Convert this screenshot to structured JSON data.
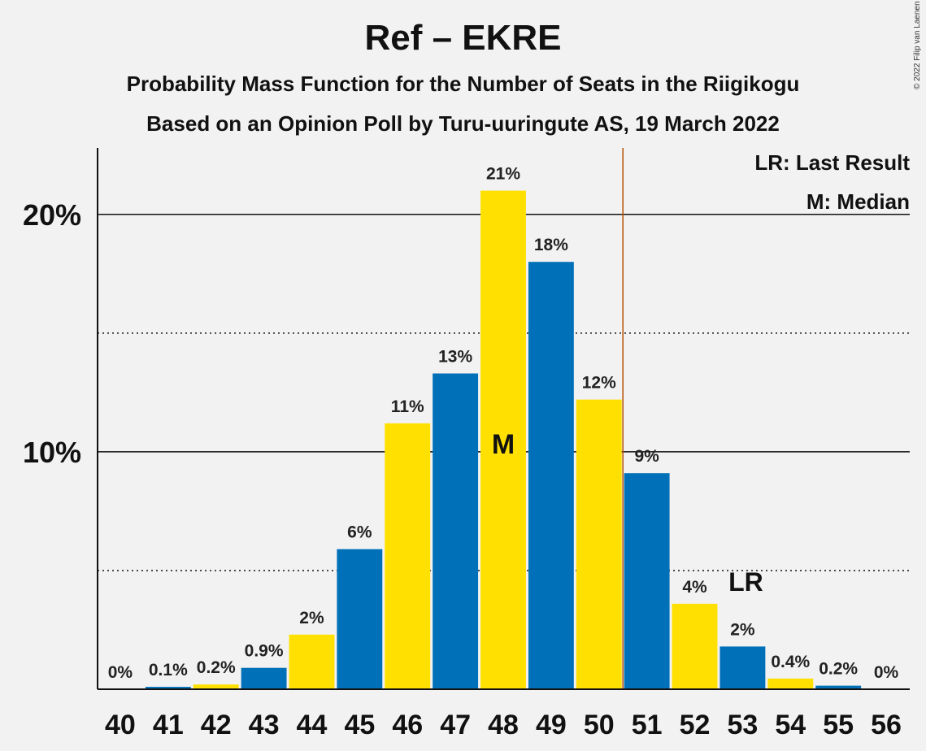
{
  "header": {
    "title": "Ref – EKRE",
    "subtitle1": "Probability Mass Function for the Number of Seats in the Riigikogu",
    "subtitle2": "Based on an Opinion Poll by Turu-uuringute AS, 19 March 2022",
    "copyright": "© 2022 Filip van Laenen"
  },
  "chart_data": {
    "type": "bar",
    "title": "Ref – EKRE",
    "categories": [
      40,
      41,
      42,
      43,
      44,
      45,
      46,
      47,
      48,
      49,
      50,
      51,
      52,
      53,
      54,
      55,
      56
    ],
    "values": [
      0,
      0.1,
      0.2,
      0.9,
      2.3,
      5.9,
      11.2,
      13.3,
      21.0,
      18.0,
      12.2,
      9.1,
      3.6,
      1.8,
      0.45,
      0.15,
      0
    ],
    "labels": [
      "0%",
      "0.1%",
      "0.2%",
      "0.9%",
      "2%",
      "6%",
      "11%",
      "13%",
      "21%",
      "18%",
      "12%",
      "9%",
      "4%",
      "2%",
      "0.4%",
      "0.2%",
      "0%"
    ],
    "yticks": [
      {
        "value": 10,
        "label": "10%"
      },
      {
        "value": 20,
        "label": "20%"
      }
    ],
    "minor_gridlines": [
      5,
      15
    ],
    "ylim": [
      0,
      22.8
    ],
    "majority_line_after": 50,
    "median": 48,
    "median_marker": "M",
    "last_result": 53,
    "last_result_marker": "LR",
    "legend": [
      "LR: Last Result",
      "M: Median"
    ],
    "colors": {
      "blue": "#0070b8",
      "yellow": "#ffe000",
      "majority": "#b85000",
      "grid": "#111111",
      "background": "#f2f2f2"
    }
  }
}
